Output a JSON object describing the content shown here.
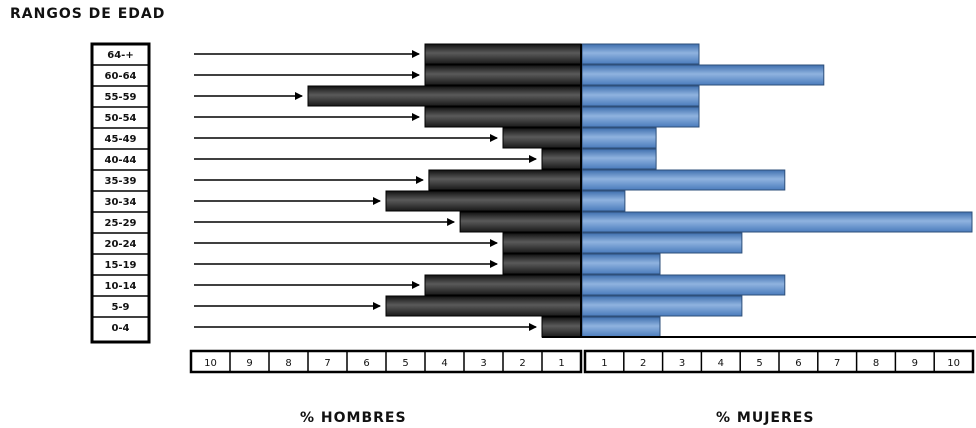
{
  "chart_data": {
    "type": "bar",
    "title": "RANGOS DE EDAD",
    "categories": [
      "64-+",
      "60-64",
      "55-59",
      "50-54",
      "45-49",
      "40-44",
      "35-39",
      "30-34",
      "25-29",
      "20-24",
      "15-19",
      "10-14",
      "5-9",
      "0-4"
    ],
    "series": [
      {
        "name": "% HOMBRES",
        "values": [
          4.0,
          4.0,
          7.0,
          4.0,
          2.0,
          1.0,
          3.9,
          5.0,
          3.1,
          2.0,
          2.0,
          4.0,
          5.0,
          1.0
        ]
      },
      {
        "name": "% MUJERES",
        "values": [
          3.0,
          6.2,
          3.0,
          3.0,
          1.9,
          1.9,
          5.2,
          1.1,
          10.0,
          4.1,
          2.0,
          5.2,
          4.1,
          2.0
        ]
      }
    ],
    "x_ticks_left": [
      "10",
      "9",
      "8",
      "7",
      "6",
      "5",
      "4",
      "3",
      "2",
      "1"
    ],
    "x_ticks_right": [
      "1",
      "2",
      "3",
      "4",
      "5",
      "6",
      "7",
      "8",
      "9",
      "10"
    ],
    "xlim": [
      0,
      10
    ],
    "xlabel_left": "% HOMBRES",
    "xlabel_right": "% MUJERES",
    "colors": {
      "men": "#2a2a2a",
      "women": "#4f81bd"
    }
  }
}
